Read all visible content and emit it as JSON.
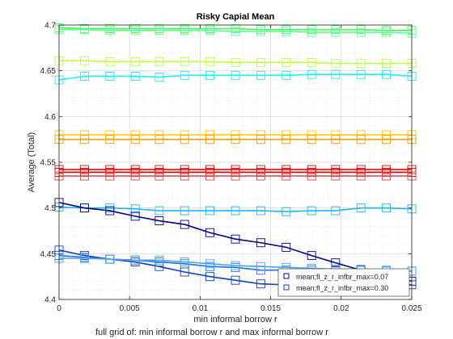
{
  "chart_data": {
    "type": "line",
    "title": "Risky Capial Mean",
    "xlabel": "min informal borrow r",
    "ylabel": "Average (Total)",
    "subtitle": "full grid of: min informal borrow r and max informal borrow r",
    "xlim": [
      0,
      0.025
    ],
    "ylim": [
      4.4,
      4.7
    ],
    "xticks": [
      0,
      0.005,
      0.01,
      0.015,
      0.02,
      0.025
    ],
    "xtick_labels": [
      "0",
      "0.005",
      "0.01",
      "0.015",
      "0.02",
      "0.025"
    ],
    "yticks": [
      4.4,
      4.45,
      4.5,
      4.55,
      4.6,
      4.65,
      4.7
    ],
    "ytick_labels": [
      "4.4",
      "4.45",
      "4.5",
      "4.55",
      "4.6",
      "4.65",
      "4.7"
    ],
    "grid": true,
    "marker": "square",
    "legend_position": "bottom-right",
    "legend": [
      {
        "label": "mean;fl_z_r_infbr_max=0.07",
        "color": "#0000b3"
      },
      {
        "label": "mean;fl_z_r_infbr_max=0.30",
        "color": "#1a3ccc"
      }
    ],
    "x": [
      0,
      0.0018,
      0.0036,
      0.0054,
      0.0071,
      0.0089,
      0.0107,
      0.0125,
      0.0143,
      0.0161,
      0.0179,
      0.0196,
      0.0214,
      0.0232,
      0.025
    ],
    "series": [
      {
        "color": "#3fff3f",
        "values": [
          4.697,
          4.696,
          4.696,
          4.696,
          4.696,
          4.696,
          4.696,
          4.696,
          4.695,
          4.695,
          4.695,
          4.695,
          4.695,
          4.694,
          4.694
        ]
      },
      {
        "color": "#5cffa3",
        "values": [
          4.695,
          4.695,
          4.694,
          4.694,
          4.694,
          4.694,
          4.694,
          4.693,
          4.693,
          4.693,
          4.692,
          4.692,
          4.692,
          4.692,
          4.691
        ]
      },
      {
        "color": "#bfff3f",
        "values": [
          4.661,
          4.661,
          4.66,
          4.66,
          4.66,
          4.66,
          4.66,
          4.659,
          4.659,
          4.659,
          4.659,
          4.658,
          4.658,
          4.658,
          4.658
        ]
      },
      {
        "color": "#1aeeff",
        "values": [
          4.64,
          4.644,
          4.644,
          4.644,
          4.643,
          4.645,
          4.645,
          4.645,
          4.645,
          4.645,
          4.646,
          4.646,
          4.646,
          4.646,
          4.644
        ]
      },
      {
        "color": "#ffc800",
        "values": [
          4.58,
          4.58,
          4.58,
          4.58,
          4.58,
          4.58,
          4.58,
          4.58,
          4.58,
          4.58,
          4.58,
          4.58,
          4.58,
          4.58,
          4.58
        ]
      },
      {
        "color": "#ff9a00",
        "values": [
          4.575,
          4.575,
          4.575,
          4.575,
          4.575,
          4.575,
          4.575,
          4.575,
          4.575,
          4.575,
          4.575,
          4.575,
          4.575,
          4.575,
          4.575
        ]
      },
      {
        "color": "#ff0000",
        "values": [
          4.542,
          4.542,
          4.542,
          4.542,
          4.542,
          4.542,
          4.542,
          4.542,
          4.542,
          4.542,
          4.542,
          4.542,
          4.542,
          4.542,
          4.542
        ]
      },
      {
        "color": "#cc0000",
        "values": [
          4.539,
          4.539,
          4.539,
          4.539,
          4.539,
          4.539,
          4.539,
          4.539,
          4.539,
          4.539,
          4.539,
          4.539,
          4.539,
          4.539,
          4.539
        ]
      },
      {
        "color": "#e64040",
        "values": [
          4.535,
          4.535,
          4.535,
          4.535,
          4.535,
          4.535,
          4.535,
          4.535,
          4.535,
          4.535,
          4.535,
          4.535,
          4.535,
          4.535,
          4.535
        ]
      },
      {
        "color": "#1ab8ff",
        "values": [
          4.501,
          4.5,
          4.5,
          4.499,
          4.497,
          4.497,
          4.497,
          4.497,
          4.497,
          4.496,
          4.497,
          4.497,
          4.5,
          4.5,
          4.499
        ]
      },
      {
        "color": "#00008c",
        "values": [
          4.506,
          4.5,
          4.497,
          4.491,
          4.486,
          4.482,
          4.473,
          4.466,
          4.462,
          4.457,
          4.448,
          4.44,
          4.432,
          4.425,
          4.42
        ]
      },
      {
        "color": "#0a3ecc",
        "values": [
          4.454,
          4.448,
          4.444,
          4.441,
          4.436,
          4.43,
          4.425,
          4.421,
          4.417,
          4.416,
          4.416,
          4.416,
          4.416,
          4.416,
          4.416
        ]
      },
      {
        "color": "#1e6ee6",
        "values": [
          4.448,
          4.446,
          4.444,
          4.443,
          4.441,
          4.439,
          4.436,
          4.435,
          4.432,
          4.432,
          4.432,
          4.432,
          4.432,
          4.431,
          4.431
        ]
      },
      {
        "color": "#4aa3ff",
        "values": [
          4.445,
          4.445,
          4.444,
          4.443,
          4.443,
          4.441,
          4.439,
          4.437,
          4.436,
          4.435,
          4.434,
          4.433,
          4.433,
          4.432,
          4.431
        ]
      }
    ]
  }
}
